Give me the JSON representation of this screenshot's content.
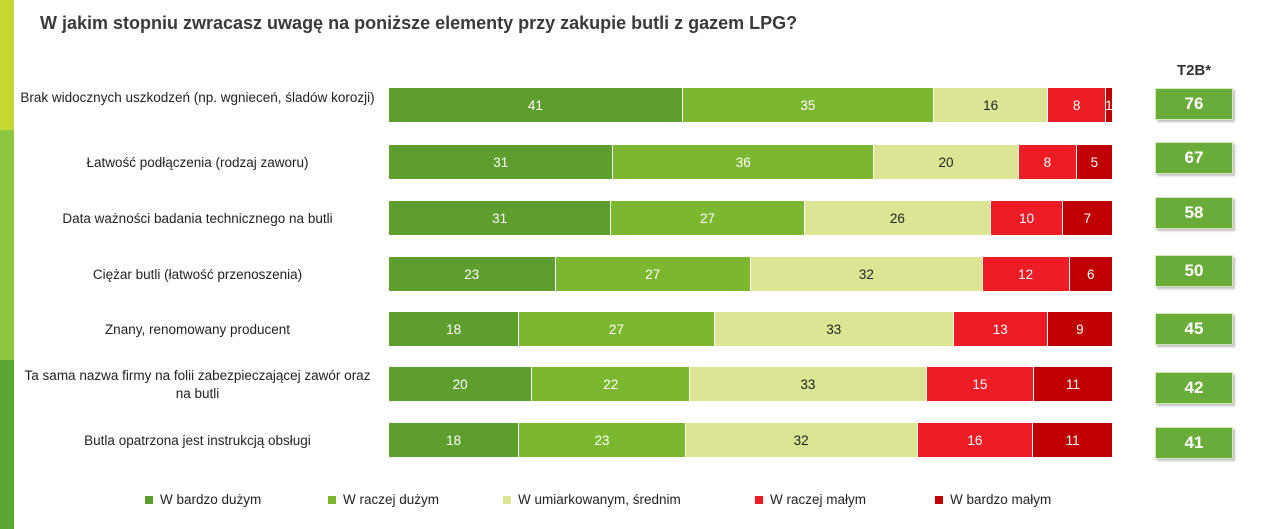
{
  "title": "W jakim stopniu zwracasz uwagę na poniższe elementy przy zakupie butli z gazem LPG?",
  "t2b_header": "T2B*",
  "colors": {
    "accent_top": "#c5d731",
    "accent_mid": "#8dc63f",
    "accent_bottom": "#5aa832",
    "t2b_box": "#6aac3a"
  },
  "chart_data": {
    "type": "bar",
    "orientation": "horizontal",
    "stacked": true,
    "percent_scale": [
      0,
      100
    ],
    "categories": [
      "Brak widocznych uszkodzeń (np. wgnieceń, śladów korozji)",
      "Łatwość podłączenia (rodzaj zaworu)",
      "Data ważności badania technicznego na butli",
      "Ciężar butli (łatwość przenoszenia)",
      "Znany, renomowany producent",
      "Ta sama nazwa firmy na folii zabezpieczającej zawór oraz na butli",
      "Butla opatrzona jest instrukcją obsługi"
    ],
    "series": [
      {
        "name": "W bardzo dużym",
        "color": "#5e9e2e",
        "text": "light",
        "values": [
          41,
          31,
          31,
          23,
          18,
          20,
          18
        ]
      },
      {
        "name": "W raczej dużym",
        "color": "#7cb82f",
        "text": "light",
        "values": [
          35,
          36,
          27,
          27,
          27,
          22,
          23
        ]
      },
      {
        "name": "W umiarkowanym, średnim",
        "color": "#dce594",
        "text": "dark",
        "values": [
          16,
          20,
          26,
          32,
          33,
          33,
          32
        ]
      },
      {
        "name": "W raczej małym",
        "color": "#ee1c25",
        "text": "light",
        "values": [
          8,
          8,
          10,
          12,
          13,
          15,
          16
        ]
      },
      {
        "name": "W bardzo małym",
        "color": "#c00000",
        "text": "light",
        "values": [
          1,
          5,
          7,
          6,
          9,
          11,
          11
        ]
      }
    ],
    "t2b": [
      76,
      67,
      58,
      50,
      45,
      42,
      41
    ],
    "legend_position": "bottom",
    "grid": false
  }
}
